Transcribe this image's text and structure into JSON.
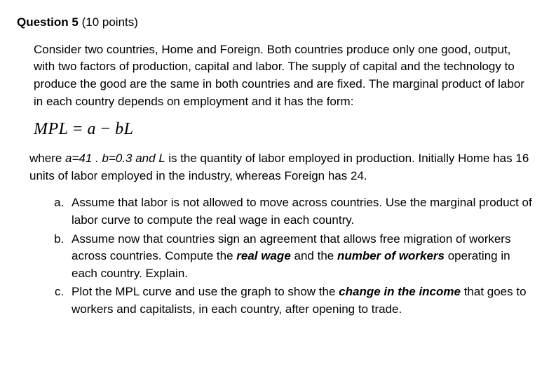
{
  "heading": {
    "label": "Question 5",
    "points": "(10 points)"
  },
  "intro": "Consider two countries, Home and Foreign.  Both countries produce only one good, output, with two factors of production, capital and labor.  The supply of capital and the technology to produce the good are the same in both countries and are fixed.  The marginal product of labor in each country depends on employment and it has the form:",
  "formula": {
    "lhs": "MPL",
    "eq": " = ",
    "a": "a",
    "minus": " − ",
    "b": "b",
    "L": "L"
  },
  "where": {
    "pre": "where ",
    "avals": "a=41 . b=0.3 and ",
    "Lsym": " L ",
    "post": "is the quantity of labor employed in production.  Initially Home has 16 units of labor employed in the industry, whereas Foreign has 24."
  },
  "parts": {
    "a": "Assume that labor is not allowed to move across countries.  Use the marginal product of labor curve to compute the real wage in each country.",
    "b": {
      "t1": "Assume now that countries sign an agreement that allows free migration of workers across countries.  Compute the ",
      "em1": "real wage",
      "t2": " and the ",
      "em2": "number of workers",
      "t3": " operating in each country.  Explain."
    },
    "c": {
      "t1": "Plot the MPL curve and use the graph to show the ",
      "em1": "change in the income",
      "t2": " that goes to workers and capitalists, in each country, after opening to trade."
    }
  }
}
